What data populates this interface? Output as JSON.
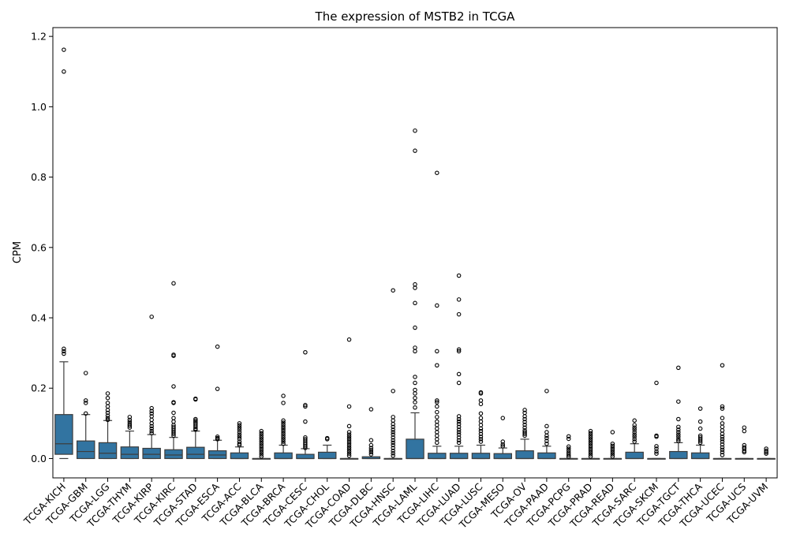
{
  "chart_data": {
    "type": "box",
    "title": "The expression of MSTB2 in TCGA",
    "xlabel": "",
    "ylabel": "CPM",
    "ylim": [
      -0.055,
      1.225
    ],
    "yticks": [
      0.0,
      0.2,
      0.4,
      0.6,
      0.8,
      1.0,
      1.2
    ],
    "ytick_labels": [
      "0.0",
      "0.2",
      "0.4",
      "0.6",
      "0.8",
      "1.0",
      "1.2"
    ],
    "box_color": "#3274a1",
    "categories": [
      "TCGA-KICH",
      "TCGA-GBM",
      "TCGA-LGG",
      "TCGA-THYM",
      "TCGA-KIRP",
      "TCGA-KIRC",
      "TCGA-STAD",
      "TCGA-ESCA",
      "TCGA-ACC",
      "TCGA-BLCA",
      "TCGA-BRCA",
      "TCGA-CESC",
      "TCGA-CHOL",
      "TCGA-COAD",
      "TCGA-DLBC",
      "TCGA-HNSC",
      "TCGA-LAML",
      "TCGA-LIHC",
      "TCGA-LUAD",
      "TCGA-LUSC",
      "TCGA-MESO",
      "TCGA-OV",
      "TCGA-PAAD",
      "TCGA-PCPG",
      "TCGA-PRAD",
      "TCGA-READ",
      "TCGA-SARC",
      "TCGA-SKCM",
      "TCGA-TGCT",
      "TCGA-THCA",
      "TCGA-UCEC",
      "TCGA-UCS",
      "TCGA-UVM"
    ],
    "boxes": [
      {
        "q1": 0.012,
        "median": 0.042,
        "q3": 0.125,
        "whisker_low": 0.0,
        "whisker_high": 0.275,
        "outliers": [
          1.162,
          1.1,
          0.312,
          0.305,
          0.298
        ]
      },
      {
        "q1": 0.0,
        "median": 0.02,
        "q3": 0.05,
        "whisker_low": 0.0,
        "whisker_high": 0.125,
        "outliers": [
          0.243,
          0.165,
          0.158,
          0.128
        ]
      },
      {
        "q1": 0.0,
        "median": 0.015,
        "q3": 0.045,
        "whisker_low": 0.0,
        "whisker_high": 0.108,
        "outliers": [
          0.185,
          0.172,
          0.158,
          0.148,
          0.138,
          0.13,
          0.122,
          0.115,
          0.11
        ]
      },
      {
        "q1": 0.0,
        "median": 0.012,
        "q3": 0.033,
        "whisker_low": 0.0,
        "whisker_high": 0.078,
        "outliers": [
          0.118,
          0.11,
          0.104,
          0.098,
          0.093,
          0.088
        ]
      },
      {
        "q1": 0.0,
        "median": 0.012,
        "q3": 0.029,
        "whisker_low": 0.0,
        "whisker_high": 0.068,
        "outliers": [
          0.403,
          0.143,
          0.135,
          0.128,
          0.12,
          0.11,
          0.1,
          0.092,
          0.085,
          0.078,
          0.072
        ]
      },
      {
        "q1": 0.0,
        "median": 0.01,
        "q3": 0.025,
        "whisker_low": 0.0,
        "whisker_high": 0.06,
        "outliers": [
          0.498,
          0.295,
          0.292,
          0.205,
          0.16,
          0.158,
          0.13,
          0.115,
          0.105,
          0.095,
          0.09,
          0.085,
          0.08,
          0.075,
          0.07,
          0.065
        ]
      },
      {
        "q1": 0.0,
        "median": 0.012,
        "q3": 0.032,
        "whisker_low": 0.0,
        "whisker_high": 0.078,
        "outliers": [
          0.17,
          0.168,
          0.112,
          0.108,
          0.104,
          0.1,
          0.095,
          0.09,
          0.085,
          0.082
        ]
      },
      {
        "q1": 0.0,
        "median": 0.01,
        "q3": 0.022,
        "whisker_low": 0.0,
        "whisker_high": 0.052,
        "outliers": [
          0.318,
          0.198,
          0.062,
          0.058,
          0.055
        ]
      },
      {
        "q1": 0.0,
        "median": 0.0,
        "q3": 0.016,
        "whisker_low": 0.0,
        "whisker_high": 0.033,
        "outliers": [
          0.1,
          0.094,
          0.088,
          0.082,
          0.075,
          0.068,
          0.062,
          0.056,
          0.048,
          0.042,
          0.038
        ]
      },
      {
        "q1": 0.0,
        "median": 0.0,
        "q3": 0.0,
        "whisker_low": 0.0,
        "whisker_high": 0.0,
        "outliers": [
          0.078,
          0.072,
          0.066,
          0.06,
          0.054,
          0.048,
          0.042,
          0.036,
          0.03,
          0.024,
          0.018,
          0.012,
          0.006
        ]
      },
      {
        "q1": 0.0,
        "median": 0.0,
        "q3": 0.016,
        "whisker_low": 0.0,
        "whisker_high": 0.038,
        "outliers": [
          0.178,
          0.158,
          0.108,
          0.102,
          0.096,
          0.09,
          0.084,
          0.078,
          0.072,
          0.066,
          0.06,
          0.054,
          0.048,
          0.042
        ]
      },
      {
        "q1": 0.0,
        "median": 0.0,
        "q3": 0.012,
        "whisker_low": 0.0,
        "whisker_high": 0.028,
        "outliers": [
          0.302,
          0.152,
          0.148,
          0.105,
          0.06,
          0.055,
          0.05,
          0.045,
          0.04,
          0.035,
          0.03
        ]
      },
      {
        "q1": 0.0,
        "median": 0.0,
        "q3": 0.018,
        "whisker_low": 0.0,
        "whisker_high": 0.038,
        "outliers": [
          0.058,
          0.055
        ]
      },
      {
        "q1": 0.0,
        "median": 0.0,
        "q3": 0.0,
        "whisker_low": 0.0,
        "whisker_high": 0.0,
        "outliers": [
          0.338,
          0.148,
          0.092,
          0.075,
          0.068,
          0.062,
          0.056,
          0.05,
          0.044,
          0.038,
          0.032,
          0.026,
          0.02,
          0.014,
          0.008
        ]
      },
      {
        "q1": 0.0,
        "median": 0.0,
        "q3": 0.005,
        "whisker_low": 0.0,
        "whisker_high": 0.005,
        "outliers": [
          0.14,
          0.052,
          0.038,
          0.03,
          0.024,
          0.018,
          0.012
        ]
      },
      {
        "q1": 0.0,
        "median": 0.0,
        "q3": 0.0,
        "whisker_low": 0.0,
        "whisker_high": 0.0,
        "outliers": [
          0.478,
          0.192,
          0.118,
          0.108,
          0.098,
          0.09,
          0.082,
          0.075,
          0.068,
          0.06,
          0.052,
          0.045,
          0.038,
          0.03,
          0.022,
          0.015,
          0.008
        ]
      },
      {
        "q1": 0.0,
        "median": 0.0,
        "q3": 0.055,
        "whisker_low": 0.0,
        "whisker_high": 0.13,
        "outliers": [
          0.932,
          0.875,
          0.495,
          0.485,
          0.442,
          0.372,
          0.315,
          0.305,
          0.232,
          0.215,
          0.195,
          0.185,
          0.172,
          0.16,
          0.145
        ]
      },
      {
        "q1": 0.0,
        "median": 0.0,
        "q3": 0.015,
        "whisker_low": 0.0,
        "whisker_high": 0.035,
        "outliers": [
          0.812,
          0.435,
          0.305,
          0.265,
          0.165,
          0.16,
          0.148,
          0.132,
          0.118,
          0.105,
          0.095,
          0.085,
          0.075,
          0.065,
          0.055,
          0.045
        ]
      },
      {
        "q1": 0.0,
        "median": 0.0,
        "q3": 0.015,
        "whisker_low": 0.0,
        "whisker_high": 0.035,
        "outliers": [
          0.52,
          0.452,
          0.41,
          0.31,
          0.305,
          0.24,
          0.215,
          0.12,
          0.112,
          0.105,
          0.098,
          0.09,
          0.082,
          0.075,
          0.068,
          0.06,
          0.052,
          0.045
        ]
      },
      {
        "q1": 0.0,
        "median": 0.0,
        "q3": 0.015,
        "whisker_low": 0.0,
        "whisker_high": 0.038,
        "outliers": [
          0.188,
          0.185,
          0.165,
          0.155,
          0.128,
          0.115,
          0.105,
          0.095,
          0.085,
          0.078,
          0.07,
          0.062,
          0.055,
          0.048
        ]
      },
      {
        "q1": 0.0,
        "median": 0.0,
        "q3": 0.014,
        "whisker_low": 0.0,
        "whisker_high": 0.03,
        "outliers": [
          0.115,
          0.048,
          0.04,
          0.035
        ]
      },
      {
        "q1": 0.0,
        "median": 0.0,
        "q3": 0.022,
        "whisker_low": 0.0,
        "whisker_high": 0.055,
        "outliers": [
          0.138,
          0.13,
          0.12,
          0.112,
          0.104,
          0.096,
          0.088,
          0.08,
          0.075,
          0.07,
          0.065
        ]
      },
      {
        "q1": 0.0,
        "median": 0.0,
        "q3": 0.016,
        "whisker_low": 0.0,
        "whisker_high": 0.035,
        "outliers": [
          0.192,
          0.092,
          0.075,
          0.065,
          0.058,
          0.05,
          0.042
        ]
      },
      {
        "q1": 0.0,
        "median": 0.0,
        "q3": 0.0,
        "whisker_low": 0.0,
        "whisker_high": 0.0,
        "outliers": [
          0.063,
          0.056,
          0.034,
          0.028,
          0.022,
          0.016,
          0.01,
          0.005
        ]
      },
      {
        "q1": 0.0,
        "median": 0.0,
        "q3": 0.0,
        "whisker_low": 0.0,
        "whisker_high": 0.0,
        "outliers": [
          0.078,
          0.072,
          0.066,
          0.06,
          0.054,
          0.048,
          0.042,
          0.036,
          0.03,
          0.024,
          0.018,
          0.012,
          0.006
        ]
      },
      {
        "q1": 0.0,
        "median": 0.0,
        "q3": 0.0,
        "whisker_low": 0.0,
        "whisker_high": 0.0,
        "outliers": [
          0.075,
          0.042,
          0.036,
          0.03,
          0.024,
          0.018,
          0.012,
          0.006
        ]
      },
      {
        "q1": 0.0,
        "median": 0.0,
        "q3": 0.018,
        "whisker_low": 0.0,
        "whisker_high": 0.042,
        "outliers": [
          0.108,
          0.095,
          0.088,
          0.082,
          0.075,
          0.068,
          0.062,
          0.055,
          0.048
        ]
      },
      {
        "q1": 0.0,
        "median": 0.0,
        "q3": 0.0,
        "whisker_low": 0.0,
        "whisker_high": 0.0,
        "outliers": [
          0.215,
          0.065,
          0.062,
          0.035,
          0.028,
          0.02,
          0.014
        ]
      },
      {
        "q1": 0.0,
        "median": 0.0,
        "q3": 0.02,
        "whisker_low": 0.0,
        "whisker_high": 0.045,
        "outliers": [
          0.258,
          0.162,
          0.112,
          0.09,
          0.082,
          0.075,
          0.068,
          0.062,
          0.055,
          0.05
        ]
      },
      {
        "q1": 0.0,
        "median": 0.0,
        "q3": 0.016,
        "whisker_low": 0.0,
        "whisker_high": 0.038,
        "outliers": [
          0.142,
          0.105,
          0.085,
          0.065,
          0.06,
          0.055,
          0.05,
          0.045
        ]
      },
      {
        "q1": 0.0,
        "median": 0.0,
        "q3": 0.0,
        "whisker_low": 0.0,
        "whisker_high": 0.0,
        "outliers": [
          0.265,
          0.148,
          0.142,
          0.115,
          0.1,
          0.09,
          0.08,
          0.07,
          0.062,
          0.055,
          0.048,
          0.04,
          0.032,
          0.025,
          0.018,
          0.01
        ]
      },
      {
        "q1": 0.0,
        "median": 0.0,
        "q3": 0.0,
        "whisker_low": 0.0,
        "whisker_high": 0.0,
        "outliers": [
          0.088,
          0.078,
          0.038,
          0.032,
          0.028,
          0.022,
          0.018
        ]
      },
      {
        "q1": 0.0,
        "median": 0.0,
        "q3": 0.0,
        "whisker_low": 0.0,
        "whisker_high": 0.0,
        "outliers": [
          0.028,
          0.022,
          0.018,
          0.014
        ]
      }
    ]
  }
}
